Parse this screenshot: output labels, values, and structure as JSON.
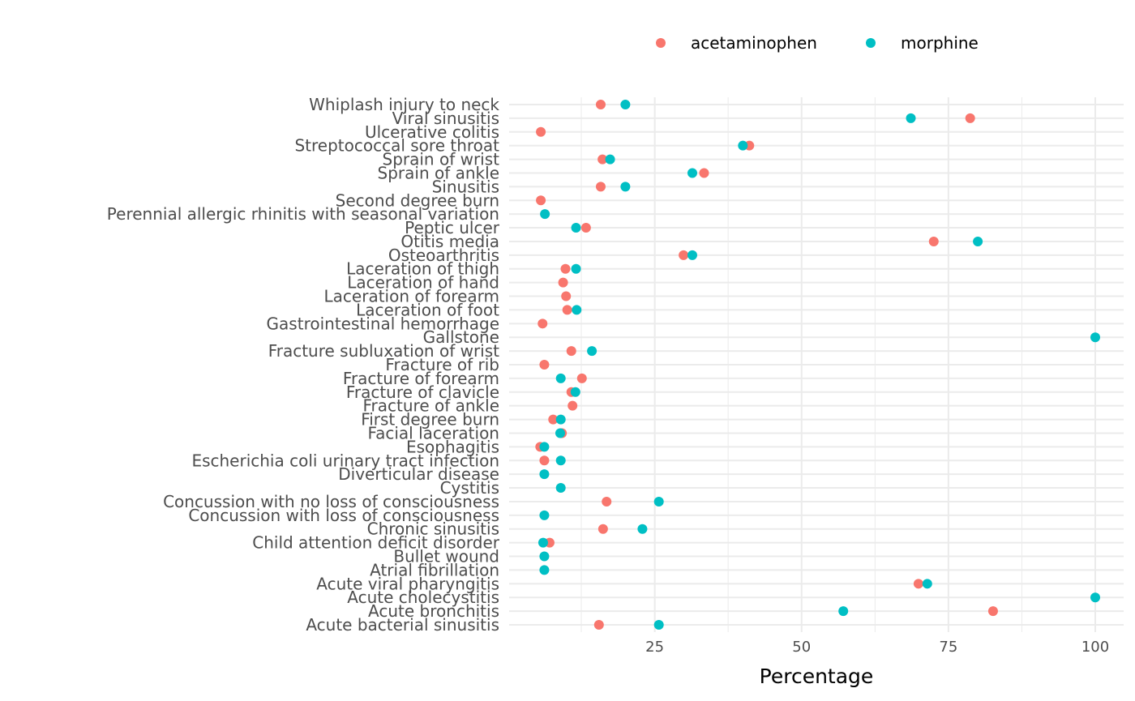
{
  "chart_data": {
    "type": "scatter",
    "title": "",
    "xlabel": "Percentage",
    "ylabel": "",
    "xlim": [
      0,
      101.5
    ],
    "x_ticks": [
      25,
      50,
      75,
      100
    ],
    "x_minor_ticks": [
      12.5,
      37.5,
      62.5,
      87.5
    ],
    "grid": true,
    "legend_position": "top",
    "categories": [
      "Whiplash injury to neck",
      "Viral sinusitis",
      "Ulcerative colitis",
      "Streptococcal sore throat",
      "Sprain of wrist",
      "Sprain of ankle",
      "Sinusitis",
      "Second degree burn",
      "Perennial allergic rhinitis with seasonal variation",
      "Peptic ulcer",
      "Otitis media",
      "Osteoarthritis",
      "Laceration of thigh",
      "Laceration of hand",
      "Laceration of forearm",
      "Laceration of foot",
      "Gastrointestinal hemorrhage",
      "Gallstone",
      "Fracture subluxation of wrist",
      "Fracture of rib",
      "Fracture of forearm",
      "Fracture of clavicle",
      "Fracture of ankle",
      "First degree burn",
      "Facial laceration",
      "Esophagitis",
      "Escherichia coli urinary tract infection",
      "Diverticular disease",
      "Cystitis",
      "Concussion with no loss of consciousness",
      "Concussion with loss of consciousness",
      "Chronic sinusitis",
      "Child attention deficit disorder",
      "Bullet wound",
      "Atrial fibrillation",
      "Acute viral pharyngitis",
      "Acute cholecystitis",
      "Acute bronchitis",
      "Acute bacterial sinusitis"
    ],
    "series": [
      {
        "name": "acetaminophen",
        "color": "#F8766D",
        "values": [
          15.8,
          78.7,
          5.6,
          41.1,
          16.1,
          33.4,
          15.8,
          5.6,
          null,
          13.3,
          72.5,
          29.9,
          9.8,
          9.4,
          9.9,
          10.1,
          5.9,
          null,
          10.8,
          6.2,
          12.6,
          10.8,
          11.0,
          7.7,
          9.2,
          5.5,
          6.2,
          null,
          null,
          16.8,
          null,
          16.2,
          7.1,
          null,
          null,
          69.9,
          null,
          82.6,
          15.5
        ]
      },
      {
        "name": "morphine",
        "color": "#00BFC4",
        "values": [
          20.0,
          68.6,
          null,
          40.0,
          17.4,
          31.4,
          20.0,
          null,
          6.3,
          11.6,
          80.0,
          31.4,
          11.6,
          null,
          null,
          11.7,
          null,
          100,
          14.3,
          null,
          9.0,
          11.5,
          null,
          9.0,
          8.9,
          6.2,
          9.0,
          6.2,
          9.0,
          25.7,
          6.2,
          22.9,
          6.0,
          6.2,
          6.2,
          71.4,
          100,
          57.1,
          25.7
        ]
      }
    ]
  }
}
